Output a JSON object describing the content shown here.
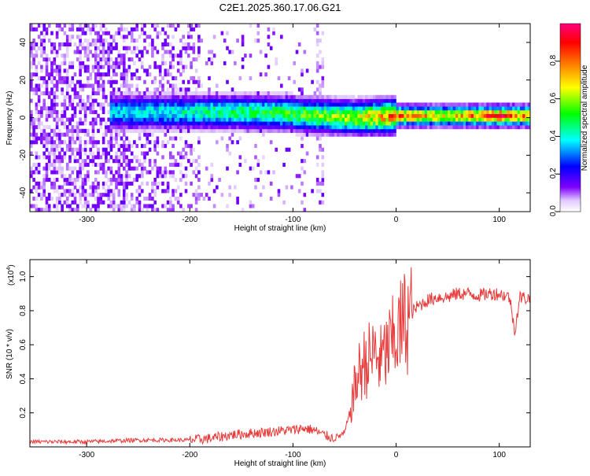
{
  "title": "C2E1.2025.360.17.06.G21",
  "chart_data": [
    {
      "type": "heatmap",
      "name": "spectrogram",
      "xlabel": "Height of straight line (km)",
      "ylabel": "Frequency (Hz)",
      "xlim": [
        -355,
        130
      ],
      "ylim": [
        -50,
        50
      ],
      "xticks": [
        -300,
        -200,
        -100,
        0,
        100
      ],
      "yticks": [
        -40,
        -20,
        0,
        20,
        40
      ],
      "colorbar": {
        "label": "Normalized spectral amplitude",
        "range": [
          0.0,
          1.0
        ],
        "ticks": [
          0.0,
          0.2,
          0.4,
          0.6,
          0.8
        ],
        "colors": [
          "#ffffff",
          "#8000ff",
          "#0000ff",
          "#00ffff",
          "#00ff00",
          "#ffff00",
          "#ff8000",
          "#ff0000",
          "#ff0080"
        ]
      },
      "ridge": {
        "x": [
          -270,
          -200,
          -150,
          -100,
          -75,
          -40,
          0,
          50,
          100,
          130
        ],
        "center_hz": [
          3,
          3,
          3,
          2,
          1,
          0,
          1,
          1,
          1,
          1
        ],
        "peak_amplitude": [
          0.4,
          0.45,
          0.5,
          0.55,
          0.6,
          0.65,
          0.85,
          0.75,
          0.95,
          0.8
        ]
      }
    },
    {
      "type": "line",
      "name": "snr",
      "xlabel": "Height of straight line (km)",
      "ylabel": "SNR (10 * v/v)",
      "scale_label": "(x10",
      "scale_exp": "4",
      "scale_close": ")",
      "color": "#e83a3a",
      "xlim": [
        -355,
        130
      ],
      "ylim": [
        0,
        1.1
      ],
      "xticks": [
        -300,
        -200,
        -100,
        0,
        100
      ],
      "yticks": [
        0.2,
        0.4,
        0.6,
        0.8,
        1.0
      ],
      "series": [
        {
          "name": "SNR",
          "x": [
            -355,
            -300,
            -250,
            -200,
            -180,
            -160,
            -140,
            -120,
            -100,
            -90,
            -80,
            -70,
            -60,
            -50,
            -45,
            -40,
            -35,
            -30,
            -25,
            -20,
            -15,
            -10,
            -5,
            0,
            5,
            10,
            20,
            30,
            40,
            50,
            60,
            70,
            80,
            90,
            100,
            110,
            115,
            120,
            130
          ],
          "y": [
            0.03,
            0.03,
            0.04,
            0.04,
            0.05,
            0.07,
            0.08,
            0.09,
            0.1,
            0.11,
            0.1,
            0.07,
            0.05,
            0.08,
            0.2,
            0.35,
            0.45,
            0.5,
            0.52,
            0.55,
            0.5,
            0.55,
            0.6,
            0.65,
            0.7,
            0.75,
            0.82,
            0.86,
            0.88,
            0.88,
            0.9,
            0.9,
            0.89,
            0.9,
            0.9,
            0.88,
            0.68,
            0.88,
            0.87
          ]
        }
      ]
    }
  ]
}
